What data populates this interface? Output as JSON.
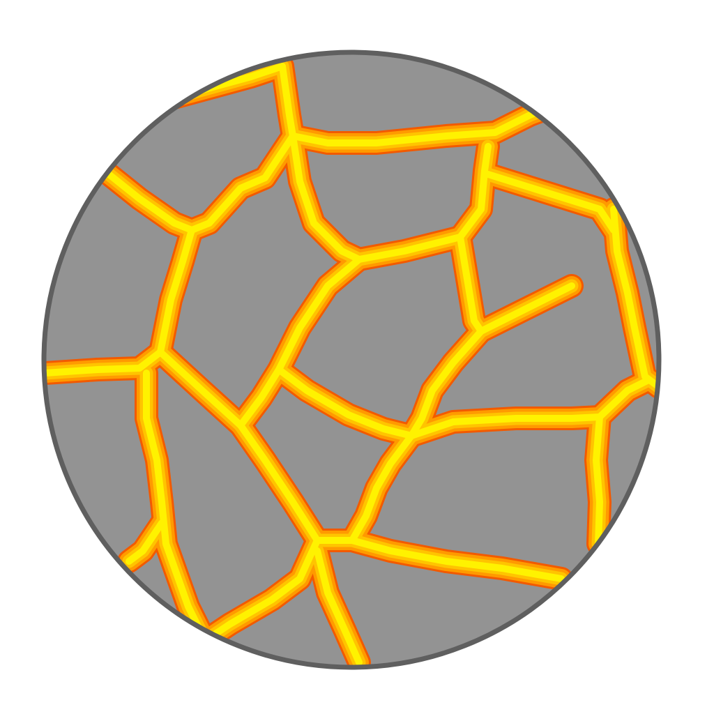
{
  "illustration": {
    "subject": "lava-cracked-stone-disc-icon",
    "colors": {
      "background": "#ffffff",
      "rock": "#939393",
      "rim": "#5f5f5f",
      "lava_core": "#fff200",
      "lava_mid": "#ffc400",
      "lava_edge": "#ff9a00",
      "lava_hot": "#f25a00"
    }
  }
}
